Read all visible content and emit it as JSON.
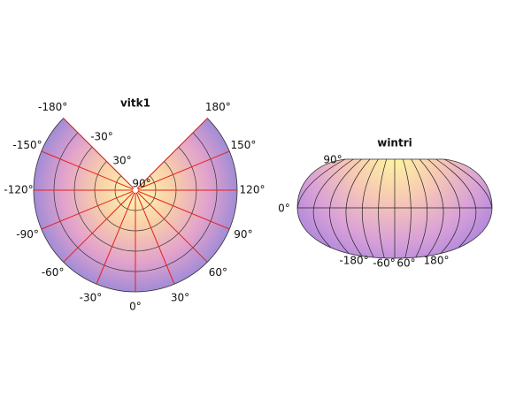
{
  "maps": [
    {
      "title": "vitk1",
      "longitude_labels": [
        "-180°",
        "-150°",
        "-120°",
        "-90°",
        "-60°",
        "-30°",
        "0°",
        "30°",
        "60°",
        "90°",
        "120°",
        "150°",
        "180°"
      ],
      "latitude_labels": [
        "-30°",
        "30°",
        "90°"
      ]
    },
    {
      "title": "wintri",
      "latitude_labels": [
        "90°",
        "0°"
      ],
      "longitude_labels": [
        "-180°",
        "-60°",
        "60°",
        "180°"
      ]
    }
  ]
}
